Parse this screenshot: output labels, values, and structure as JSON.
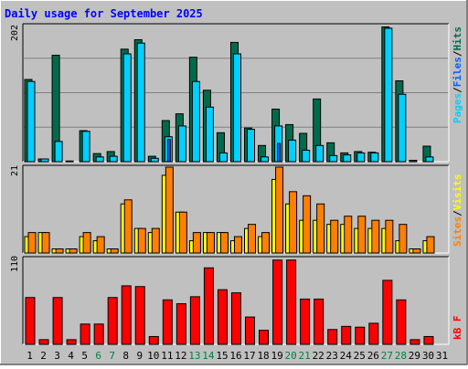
{
  "title": "Daily usage for September 2025",
  "legend": {
    "hits": "Hits",
    "files": "Files",
    "pages": "Pages",
    "visits": "Visits",
    "sites": "Sites",
    "kbf": "kB F",
    "sep": "/"
  },
  "colors": {
    "background": "#c0c0c0",
    "panel": "#c0c0c0",
    "title": "#0000ff",
    "hits": "#006b4c",
    "files": "#00d0ff",
    "pages": "#0060ff",
    "visits": "#ffff00",
    "sites": "#ff8000",
    "kbf": "#ff0000",
    "weekend_day": "#008040"
  },
  "chart_data": [
    {
      "type": "bar",
      "panel": "hits-files-pages",
      "ymax_label": "202",
      "ylim": [
        0,
        202
      ],
      "categories": [
        "1",
        "2",
        "3",
        "4",
        "5",
        "6",
        "7",
        "8",
        "9",
        "10",
        "11",
        "12",
        "13",
        "14",
        "15",
        "16",
        "17",
        "18",
        "19",
        "20",
        "21",
        "22",
        "23",
        "24",
        "25",
        "26",
        "27",
        "28",
        "29",
        "30",
        "31"
      ],
      "weekend_days": [
        "6",
        "7",
        "13",
        "14",
        "20",
        "21",
        "27",
        "28"
      ],
      "series": [
        {
          "name": "Hits",
          "values": [
            122,
            4,
            158,
            1,
            46,
            12,
            15,
            167,
            181,
            8,
            61,
            71,
            155,
            106,
            43,
            177,
            50,
            24,
            78,
            55,
            42,
            93,
            28,
            13,
            15,
            14,
            200,
            120,
            2,
            23,
            0
          ]
        },
        {
          "name": "Files",
          "values": [
            119,
            4,
            30,
            0,
            45,
            7,
            8,
            160,
            176,
            5,
            37,
            53,
            119,
            81,
            13,
            160,
            48,
            7,
            53,
            32,
            17,
            24,
            9,
            10,
            13,
            13,
            198,
            100,
            0,
            7,
            0
          ]
        },
        {
          "name": "Pages",
          "values": [
            0,
            0,
            0,
            0,
            0,
            0,
            0,
            0,
            0,
            0,
            33,
            0,
            0,
            0,
            0,
            0,
            0,
            0,
            27,
            0,
            0,
            0,
            0,
            0,
            0,
            0,
            0,
            0,
            0,
            0,
            0
          ]
        }
      ]
    },
    {
      "type": "bar",
      "panel": "visits-sites",
      "ymax_label": "21",
      "ylim": [
        0,
        21
      ],
      "categories": [
        "1",
        "2",
        "3",
        "4",
        "5",
        "6",
        "7",
        "8",
        "9",
        "10",
        "11",
        "12",
        "13",
        "14",
        "15",
        "16",
        "17",
        "18",
        "19",
        "20",
        "21",
        "22",
        "23",
        "24",
        "25",
        "26",
        "27",
        "28",
        "29",
        "30",
        "31"
      ],
      "series": [
        {
          "name": "Visits",
          "values": [
            4,
            5,
            1,
            1,
            4,
            3,
            1,
            12,
            6,
            5,
            19,
            10,
            3,
            5,
            5,
            3,
            6,
            4,
            18,
            12,
            8,
            8,
            7,
            7,
            6,
            6,
            6,
            3,
            1,
            3,
            0
          ]
        },
        {
          "name": "Sites",
          "values": [
            5,
            5,
            1,
            1,
            5,
            4,
            1,
            13,
            6,
            6,
            21,
            10,
            5,
            5,
            5,
            4,
            7,
            5,
            21,
            15,
            14,
            12,
            8,
            9,
            9,
            8,
            8,
            7,
            1,
            4,
            0
          ]
        }
      ]
    },
    {
      "type": "bar",
      "panel": "kbf",
      "ymax_label": "110",
      "ylim": [
        0,
        110
      ],
      "categories": [
        "1",
        "2",
        "3",
        "4",
        "5",
        "6",
        "7",
        "8",
        "9",
        "10",
        "11",
        "12",
        "13",
        "14",
        "15",
        "16",
        "17",
        "18",
        "19",
        "20",
        "21",
        "22",
        "23",
        "24",
        "25",
        "26",
        "27",
        "28",
        "29",
        "30",
        "31"
      ],
      "series": [
        {
          "name": "kB F",
          "values": [
            60,
            6,
            60,
            6,
            26,
            26,
            60,
            75,
            74,
            10,
            57,
            52,
            61,
            98,
            70,
            66,
            35,
            18,
            108,
            108,
            58,
            58,
            19,
            23,
            22,
            27,
            82,
            57,
            6,
            10,
            0
          ]
        }
      ]
    }
  ]
}
